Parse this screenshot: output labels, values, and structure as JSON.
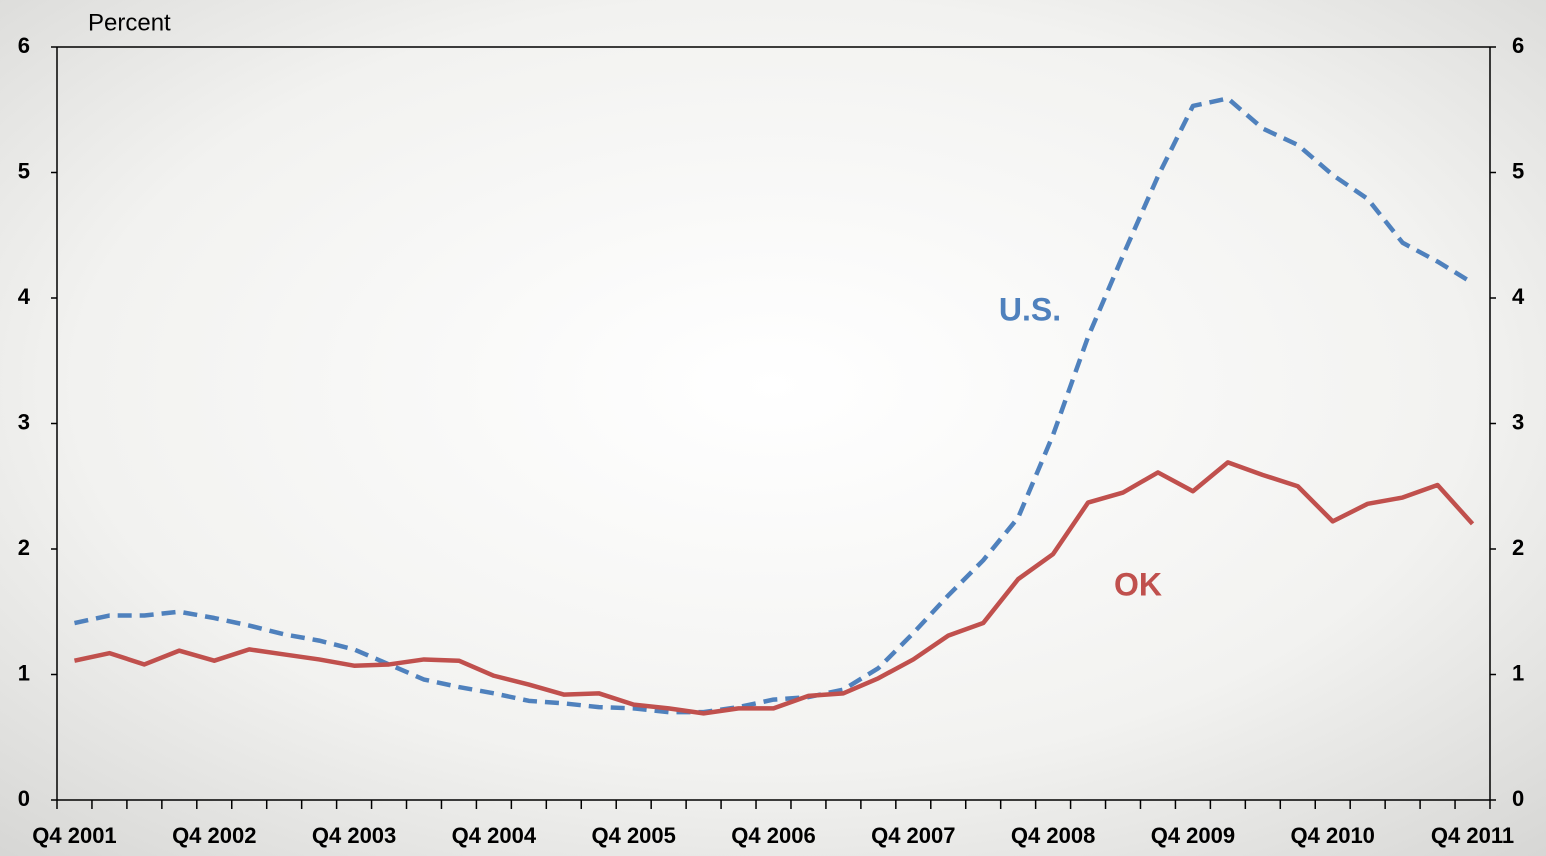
{
  "chart_data": {
    "type": "line",
    "y_label": "Percent",
    "categories": [
      "Q4 2001",
      null,
      null,
      null,
      "Q4 2002",
      null,
      null,
      null,
      "Q4 2003",
      null,
      null,
      null,
      "Q4 2004",
      null,
      null,
      null,
      "Q4 2005",
      null,
      null,
      null,
      "Q4 2006",
      null,
      null,
      null,
      "Q4 2007",
      null,
      null,
      null,
      "Q4 2008",
      null,
      null,
      null,
      "Q4 2009",
      null,
      null,
      null,
      "Q4 2010",
      null,
      null,
      null,
      "Q4 2011"
    ],
    "series": [
      {
        "name": "U.S.",
        "color": "#4f81bd",
        "dashed": true,
        "values": [
          1.41,
          1.47,
          1.47,
          1.5,
          1.45,
          1.39,
          1.32,
          1.27,
          1.2,
          1.08,
          0.96,
          0.9,
          0.85,
          0.79,
          0.77,
          0.74,
          0.73,
          0.7,
          0.7,
          0.74,
          0.8,
          0.82,
          0.88,
          1.05,
          1.33,
          1.63,
          1.91,
          2.25,
          2.91,
          3.69,
          4.34,
          4.97,
          5.53,
          5.59,
          5.35,
          5.22,
          4.98,
          4.79,
          4.44,
          4.29,
          4.12
        ]
      },
      {
        "name": "OK",
        "color": "#c0504d",
        "dashed": false,
        "values": [
          1.11,
          1.17,
          1.08,
          1.19,
          1.11,
          1.2,
          1.16,
          1.12,
          1.07,
          1.08,
          1.12,
          1.11,
          0.99,
          0.92,
          0.84,
          0.85,
          0.76,
          0.73,
          0.69,
          0.73,
          0.73,
          0.83,
          0.85,
          0.97,
          1.12,
          1.31,
          1.41,
          1.76,
          1.96,
          2.37,
          2.45,
          2.61,
          2.46,
          2.69,
          2.59,
          2.5,
          2.22,
          2.36,
          2.41,
          2.51,
          2.2
        ]
      }
    ],
    "ylim": [
      0,
      6
    ],
    "yticks": [
      0,
      1,
      2,
      3,
      4,
      5,
      6
    ],
    "y2lim": [
      0,
      6
    ],
    "y2ticks": [
      0,
      1,
      2,
      3,
      4,
      5,
      6
    ]
  }
}
